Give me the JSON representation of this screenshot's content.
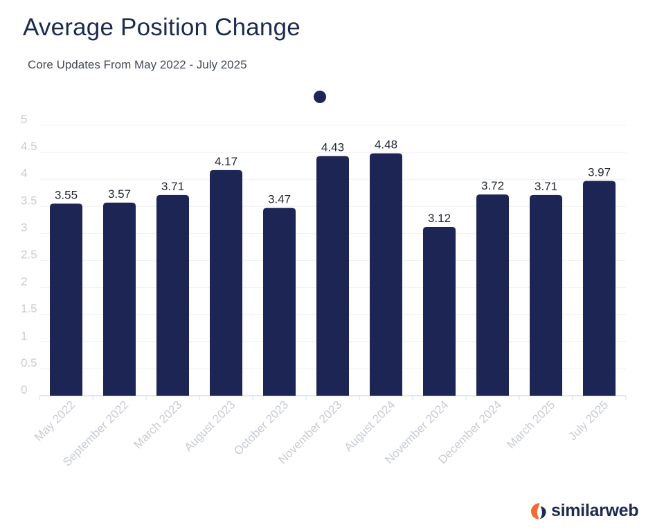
{
  "title": "Average Position Change",
  "subtitle": "Core Updates From May 2022 - July 2025",
  "brand": {
    "name": "similarweb"
  },
  "colors": {
    "bar": "#1c2553",
    "title": "#1b2a4e",
    "tick_text": "#c8ccd2",
    "grid": "#f0f1f3",
    "logo_orange": "#f26a2e"
  },
  "chart_data": {
    "type": "bar",
    "categories": [
      "May 2022",
      "September 2022",
      "March 2023",
      "August 2023",
      "October 2023",
      "November 2023",
      "August 2024",
      "November 2024",
      "December 2024",
      "March 2025",
      "July 2025"
    ],
    "values": [
      3.55,
      3.57,
      3.71,
      4.17,
      3.47,
      4.43,
      4.48,
      3.12,
      3.72,
      3.71,
      3.97
    ],
    "ylim": [
      0,
      5
    ],
    "yticks": [
      "0",
      "0.5",
      "1",
      "1.5",
      "2",
      "2.5",
      "3",
      "3.5",
      "4",
      "4.5",
      "5"
    ],
    "xlabel": "",
    "ylabel": "",
    "grid": true,
    "legend": "top-center"
  }
}
